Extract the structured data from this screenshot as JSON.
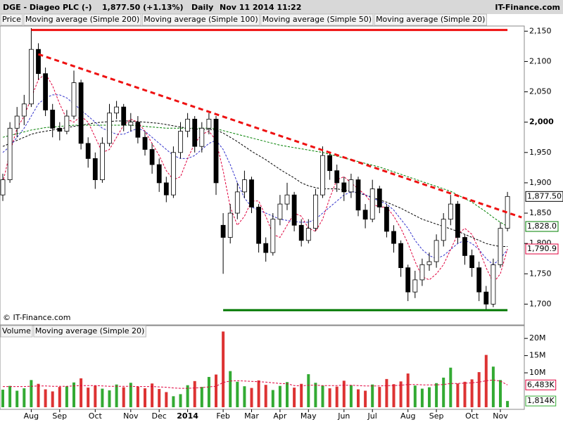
{
  "chart_data": {
    "type": "candlestick",
    "title": "DGE - Diageo PLC (-)",
    "quote": "1,877.50 (+1.13%)",
    "interval": "Daily",
    "timestamp": "Nov 11 2014 11:22",
    "brand": "IT-Finance.com",
    "watermark": "© IT-Finance.com",
    "price_legend": "Price",
    "categories": [
      null,
      null,
      null,
      null,
      "Aug",
      null,
      null,
      null,
      "Sep",
      null,
      null,
      null,
      null,
      "Oct",
      null,
      null,
      null,
      null,
      "Nov",
      null,
      null,
      null,
      "Dec",
      null,
      null,
      null,
      "2014",
      null,
      null,
      null,
      null,
      "Feb",
      null,
      null,
      null,
      "Mar",
      null,
      null,
      null,
      "Apr",
      null,
      null,
      null,
      "May",
      null,
      null,
      null,
      null,
      "Jun",
      null,
      null,
      null,
      "Jul",
      null,
      null,
      null,
      null,
      "Aug",
      null,
      null,
      null,
      "Sep",
      null,
      null,
      null,
      null,
      "Oct",
      null,
      null,
      null,
      "Nov",
      null
    ],
    "open": [
      1880,
      1905,
      1990,
      2010,
      2030,
      2120,
      2080,
      2020,
      1990,
      1985,
      2010,
      2065,
      1965,
      1940,
      1905,
      1965,
      2015,
      2025,
      1995,
      2000,
      1975,
      1955,
      1930,
      1900,
      1880,
      1950,
      1985,
      2005,
      1960,
      1990,
      2005,
      1830,
      1810,
      1850,
      1885,
      1905,
      1860,
      1800,
      1785,
      1840,
      1865,
      1880,
      1830,
      1805,
      1825,
      1880,
      1945,
      1920,
      1900,
      1885,
      1905,
      1855,
      1840,
      1890,
      1860,
      1820,
      1800,
      1760,
      1720,
      1740,
      1765,
      1770,
      1805,
      1840,
      1865,
      1810,
      1780,
      1760,
      1720,
      1700,
      1765,
      1825
    ],
    "high": [
      1915,
      2000,
      2025,
      2045,
      2155,
      2130,
      2090,
      2030,
      2000,
      2020,
      2085,
      2070,
      1975,
      1950,
      1975,
      2030,
      2035,
      2030,
      2015,
      2010,
      1985,
      1965,
      1940,
      1910,
      1960,
      2000,
      2015,
      2010,
      2000,
      2015,
      2010,
      1850,
      1865,
      1900,
      1920,
      1910,
      1865,
      1810,
      1850,
      1880,
      1900,
      1885,
      1840,
      1840,
      1890,
      1960,
      1950,
      1930,
      1910,
      1915,
      1910,
      1865,
      1905,
      1895,
      1865,
      1830,
      1805,
      1765,
      1755,
      1775,
      1785,
      1815,
      1850,
      1880,
      1870,
      1815,
      1790,
      1770,
      1730,
      1775,
      1835,
      1885
    ],
    "low": [
      1870,
      1900,
      1975,
      1995,
      2025,
      2070,
      2010,
      1975,
      1970,
      1980,
      2005,
      1955,
      1925,
      1890,
      1900,
      1960,
      2005,
      1985,
      1985,
      1965,
      1945,
      1915,
      1885,
      1868,
      1875,
      1940,
      1975,
      1950,
      1950,
      1980,
      1880,
      1750,
      1800,
      1840,
      1875,
      1850,
      1785,
      1770,
      1780,
      1830,
      1855,
      1820,
      1795,
      1800,
      1820,
      1875,
      1905,
      1885,
      1870,
      1875,
      1845,
      1825,
      1835,
      1850,
      1810,
      1785,
      1745,
      1705,
      1710,
      1730,
      1755,
      1760,
      1795,
      1830,
      1800,
      1765,
      1745,
      1705,
      1690,
      1695,
      1760,
      1820
    ],
    "close": [
      1905,
      1990,
      2010,
      2030,
      2120,
      2080,
      2020,
      1990,
      1985,
      2010,
      2065,
      1965,
      1940,
      1905,
      1965,
      2015,
      2025,
      1995,
      2000,
      1975,
      1955,
      1930,
      1900,
      1880,
      1950,
      1985,
      2005,
      1960,
      1990,
      2005,
      1900,
      1810,
      1850,
      1885,
      1905,
      1860,
      1800,
      1785,
      1840,
      1865,
      1880,
      1830,
      1805,
      1825,
      1880,
      1945,
      1920,
      1900,
      1885,
      1905,
      1855,
      1840,
      1890,
      1860,
      1820,
      1800,
      1760,
      1720,
      1740,
      1765,
      1770,
      1805,
      1840,
      1865,
      1810,
      1780,
      1760,
      1720,
      1700,
      1765,
      1825,
      1877.5
    ],
    "close_labels": {
      "71": "1,877.50"
    },
    "series": [
      {
        "name": "Moving average (Simple 200)",
        "color": "#008000",
        "values": [
          1975,
          1978,
          1981,
          1984,
          1987,
          1989,
          1991,
          1992,
          1993,
          1994,
          1995,
          1995,
          1995,
          1995,
          1995,
          1995,
          1995,
          1995,
          1995,
          1994,
          1993,
          1992,
          1991,
          1990,
          1990,
          1990,
          1990,
          1990,
          1990,
          1990,
          1989,
          1986,
          1983,
          1980,
          1977,
          1974,
          1971,
          1968,
          1965,
          1962,
          1960,
          1958,
          1956,
          1954,
          1952,
          1950,
          1947,
          1944,
          1941,
          1938,
          1935,
          1932,
          1929,
          1926,
          1922,
          1918,
          1914,
          1910,
          1906,
          1902,
          1898,
          1894,
          1890,
          1886,
          1880,
          1874,
          1868,
          1860,
          1852,
          1843,
          1835,
          1828
        ],
        "value_labels": {
          "71": "1,828.0"
        }
      },
      {
        "name": "Moving average (Simple 100)",
        "color": "#000000",
        "values": [
          1960,
          1965,
          1970,
          1975,
          1980,
          1983,
          1985,
          1987,
          1989,
          1991,
          1993,
          1995,
          1997,
          1999,
          2000,
          2001,
          2002,
          2002,
          2002,
          2001,
          2000,
          1999,
          1998,
          1996,
          1994,
          1992,
          1990,
          1989,
          1988,
          1988,
          1987,
          1982,
          1975,
          1968,
          1960,
          1952,
          1945,
          1938,
          1930,
          1922,
          1915,
          1908,
          1900,
          1895,
          1892,
          1890,
          1890,
          1890,
          1888,
          1886,
          1883,
          1880,
          1876,
          1872,
          1868,
          1863,
          1858,
          1852,
          1846,
          1840,
          1836,
          1832,
          1828,
          1824,
          1820,
          1815,
          1810,
          1805,
          1800,
          1797,
          1795,
          1795
        ]
      },
      {
        "name": "Moving average (Simple 50)",
        "color": "#3333cc",
        "values": [
          1950,
          1960,
          1975,
          1990,
          2010,
          2030,
          2040,
          2045,
          2045,
          2040,
          2030,
          2020,
          2010,
          2000,
          1990,
          1985,
          1980,
          1980,
          1985,
          1990,
          1985,
          1975,
          1965,
          1955,
          1945,
          1940,
          1940,
          1945,
          1955,
          1965,
          1970,
          1955,
          1930,
          1900,
          1875,
          1860,
          1855,
          1850,
          1845,
          1840,
          1838,
          1836,
          1835,
          1835,
          1840,
          1850,
          1860,
          1870,
          1880,
          1885,
          1885,
          1880,
          1875,
          1870,
          1865,
          1855,
          1840,
          1825,
          1805,
          1790,
          1780,
          1775,
          1780,
          1790,
          1800,
          1805,
          1800,
          1790,
          1775,
          1765,
          1775,
          1790
        ]
      },
      {
        "name": "Moving average (Simple 20)",
        "color": "#e0003c",
        "values": [
          1900,
          1950,
          1990,
          2010,
          2040,
          2070,
          2080,
          2060,
          2030,
          2005,
          2000,
          2010,
          2000,
          1975,
          1950,
          1955,
          1975,
          1995,
          2005,
          2000,
          1985,
          1965,
          1945,
          1920,
          1905,
          1910,
          1940,
          1965,
          1980,
          1985,
          1970,
          1920,
          1860,
          1830,
          1845,
          1870,
          1870,
          1845,
          1815,
          1810,
          1830,
          1850,
          1845,
          1825,
          1820,
          1840,
          1875,
          1905,
          1910,
          1900,
          1890,
          1880,
          1865,
          1860,
          1860,
          1845,
          1825,
          1800,
          1770,
          1745,
          1740,
          1750,
          1765,
          1790,
          1815,
          1825,
          1815,
          1790,
          1760,
          1735,
          1750,
          1790.9
        ],
        "value_labels": {
          "71": "1,790.9"
        }
      }
    ],
    "trendlines": [
      {
        "from": [
          4,
          2152
        ],
        "to": [
          71,
          2152
        ],
        "color": "#ee1111",
        "style": "solid"
      },
      {
        "from": [
          5,
          2112
        ],
        "to": [
          73,
          1843
        ],
        "color": "#ee1111",
        "style": "dashed"
      },
      {
        "from": [
          31,
          1690
        ],
        "to": [
          71,
          1690
        ],
        "color": "#007700",
        "style": "solid"
      }
    ],
    "ylim": [
      1668,
      2155
    ],
    "yticks": [
      {
        "value": 1700,
        "label": "1,700"
      },
      {
        "value": 1750,
        "label": "1,750"
      },
      {
        "value": 1800,
        "label": "1,800"
      },
      {
        "value": 1850,
        "label": "1,850"
      },
      {
        "value": 1900,
        "label": "1,900"
      },
      {
        "value": 1950,
        "label": "1,950"
      },
      {
        "value": 2000,
        "label": "2,000"
      },
      {
        "value": 2050,
        "label": "2,050"
      },
      {
        "value": 2100,
        "label": "2,100"
      },
      {
        "value": 2150,
        "label": "2,150"
      }
    ],
    "volume": {
      "name": "Volume",
      "up_color": "#33aa33",
      "down_color": "#dd3333",
      "values": [
        5100000.0,
        6200000.0,
        4800000.0,
        5500000.0,
        7900000.0,
        6800000.0,
        5200000.0,
        4600000.0,
        5900000.0,
        6100000.0,
        7200000.0,
        8400000.0,
        5700000.0,
        6300000.0,
        5400000.0,
        4900000.0,
        6600000.0,
        5800000.0,
        7100000.0,
        6000000.0,
        5500000.0,
        6900000.0,
        5300000.0,
        4400000.0,
        3200000.0,
        3800000.0,
        6400000.0,
        7600000.0,
        5900000.0,
        8800000.0,
        9500000.0,
        22000000.0,
        10500000.0,
        7400000.0,
        6100000.0,
        5600000.0,
        7800000.0,
        6500000.0,
        5000000.0,
        6200000.0,
        7300000.0,
        5700000.0,
        6800000.0,
        9600000.0,
        7100000.0,
        6300000.0,
        5500000.0,
        6000000.0,
        7700000.0,
        6400000.0,
        5200000.0,
        4800000.0,
        6600000.0,
        5900000.0,
        8200000.0,
        6700000.0,
        7500000.0,
        9800000.0,
        6300000.0,
        5400000.0,
        5800000.0,
        7000000.0,
        8600000.0,
        11500000.0,
        6900000.0,
        7400000.0,
        8100000.0,
        10200000.0,
        15200000.0,
        11800000.0,
        7900000.0,
        1814000.0
      ],
      "value_labels": {
        "71": "1,814K"
      },
      "series": [
        {
          "name": "Moving average (Simple 20)",
          "color": "#e0003c",
          "values": [
            6000000.0,
            6000000.0,
            6000000.0,
            6000000.0,
            6100000.0,
            6200000.0,
            6200000.0,
            6100000.0,
            6100000.0,
            6100000.0,
            6200000.0,
            6300000.0,
            6300000.0,
            6300000.0,
            6200000.0,
            6100000.0,
            6100000.0,
            6100000.0,
            6100000.0,
            6000000.0,
            6000000.0,
            6000000.0,
            5900000.0,
            5800000.0,
            5600000.0,
            5500000.0,
            5500000.0,
            5600000.0,
            5700000.0,
            5900000.0,
            6100000.0,
            7200000.0,
            7600000.0,
            7700000.0,
            7600000.0,
            7500000.0,
            7400000.0,
            7300000.0,
            7100000.0,
            6900000.0,
            6800000.0,
            6300000.0,
            6200000.0,
            6400000.0,
            6400000.0,
            6300000.0,
            6300000.0,
            6300000.0,
            6400000.0,
            6400000.0,
            6300000.0,
            6200000.0,
            6200000.0,
            6200000.0,
            6300000.0,
            6300000.0,
            6400000.0,
            6600000.0,
            6600000.0,
            6500000.0,
            6500000.0,
            6500000.0,
            6600000.0,
            6900000.0,
            6900000.0,
            7000000.0,
            7100000.0,
            7300000.0,
            7700000.0,
            7900000.0,
            7600000.0,
            6483000.0
          ],
          "value_labels": {
            "71": "6,483K"
          }
        }
      ],
      "ylim": [
        0,
        23300000.0
      ],
      "yticks": [
        {
          "value": 10000000.0,
          "label": "10M"
        },
        {
          "value": 15000000.0,
          "label": "15M"
        },
        {
          "value": 20000000.0,
          "label": "20M"
        }
      ]
    }
  }
}
